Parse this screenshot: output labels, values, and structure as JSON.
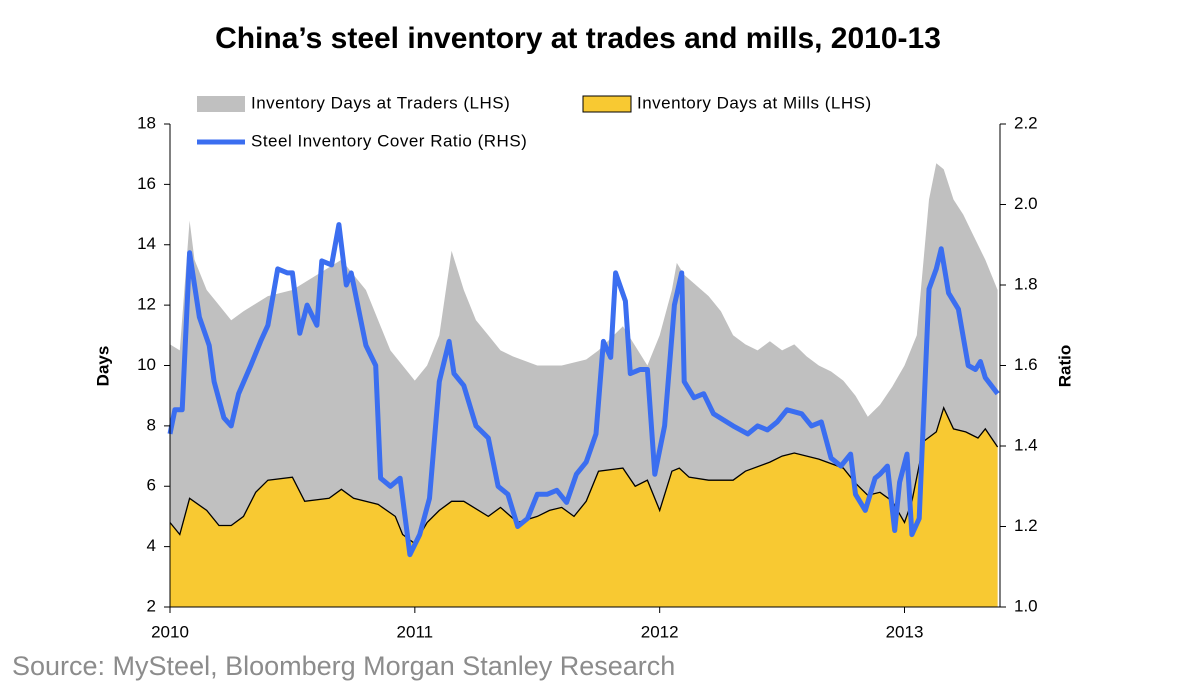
{
  "chart_data": {
    "type": "area",
    "title": "China’s steel inventory at trades and mills, 2010-13",
    "ylabel": "Days",
    "y2label": "Ratio",
    "source": "Source: MySteel, Bloomberg Morgan Stanley Research",
    "xlim": [
      2010,
      2013.39
    ],
    "xticks": [
      2010,
      2011,
      2012,
      2013
    ],
    "ylim": [
      2,
      18
    ],
    "yticks": [
      2,
      4,
      6,
      8,
      10,
      12,
      14,
      16,
      18
    ],
    "y2lim": [
      1,
      2.2
    ],
    "y2ticks": [
      {
        "value": 1,
        "label": "1.0"
      },
      1.2,
      1.4,
      1.6,
      1.8,
      {
        "value": 2,
        "label": "2.0"
      },
      2.2
    ],
    "series": [
      {
        "name": "Inventory Days at Traders (LHS)",
        "type": "area",
        "color": "#c0c0c0",
        "x": [
          2010,
          2010.04,
          2010.08,
          2010.1,
          2010.15,
          2010.2,
          2010.25,
          2010.3,
          2010.4,
          2010.5,
          2010.6,
          2010.7,
          2010.75,
          2010.8,
          2010.9,
          2011,
          2011.05,
          2011.1,
          2011.15,
          2011.2,
          2011.25,
          2011.3,
          2011.35,
          2011.4,
          2011.5,
          2011.6,
          2011.7,
          2011.75,
          2011.85,
          2011.95,
          2012,
          2012.05,
          2012.07,
          2012.1,
          2012.2,
          2012.25,
          2012.3,
          2012.35,
          2012.4,
          2012.45,
          2012.5,
          2012.55,
          2012.6,
          2012.65,
          2012.7,
          2012.75,
          2012.8,
          2012.85,
          2012.9,
          2012.95,
          2013,
          2013.05,
          2013.1,
          2013.13,
          2013.16,
          2013.2,
          2013.24,
          2013.27,
          2013.33,
          2013.38
        ],
        "values": [
          10.7,
          10.5,
          14.8,
          13.5,
          12.5,
          12,
          11.5,
          11.8,
          12.3,
          12.5,
          13,
          13.5,
          13,
          12.5,
          10.5,
          9.5,
          10,
          11,
          13.8,
          12.5,
          11.5,
          11,
          10.5,
          10.3,
          10,
          10,
          10.2,
          10.5,
          11.3,
          10,
          11,
          12.5,
          13.4,
          13,
          12.3,
          11.8,
          11,
          10.7,
          10.5,
          10.8,
          10.5,
          10.7,
          10.3,
          10,
          9.8,
          9.5,
          9,
          8.3,
          8.7,
          9.3,
          10,
          11,
          15.5,
          16.7,
          16.5,
          15.5,
          15,
          14.5,
          13.5,
          12.5
        ]
      },
      {
        "name": "Inventory Days at Mills (LHS)",
        "type": "area",
        "color": "#f8c932",
        "x": [
          2010,
          2010.04,
          2010.08,
          2010.15,
          2010.2,
          2010.25,
          2010.3,
          2010.35,
          2010.4,
          2010.5,
          2010.55,
          2010.65,
          2010.7,
          2010.75,
          2010.85,
          2010.92,
          2010.95,
          2011,
          2011.05,
          2011.1,
          2011.15,
          2011.2,
          2011.3,
          2011.35,
          2011.42,
          2011.5,
          2011.55,
          2011.6,
          2011.65,
          2011.7,
          2011.75,
          2011.85,
          2011.9,
          2011.95,
          2012,
          2012.05,
          2012.08,
          2012.12,
          2012.2,
          2012.3,
          2012.35,
          2012.45,
          2012.5,
          2012.55,
          2012.65,
          2012.75,
          2012.8,
          2012.85,
          2012.9,
          2012.95,
          2013,
          2013.03,
          2013.08,
          2013.13,
          2013.16,
          2013.2,
          2013.25,
          2013.3,
          2013.33,
          2013.38
        ],
        "values": [
          4.8,
          4.4,
          5.6,
          5.2,
          4.7,
          4.7,
          5,
          5.8,
          6.2,
          6.3,
          5.5,
          5.6,
          5.9,
          5.6,
          5.4,
          5,
          4.4,
          4.1,
          4.8,
          5.2,
          5.5,
          5.5,
          5,
          5.3,
          4.8,
          5,
          5.2,
          5.3,
          5,
          5.5,
          6.5,
          6.6,
          6,
          6.2,
          5.2,
          6.5,
          6.6,
          6.3,
          6.2,
          6.2,
          6.5,
          6.8,
          7,
          7.1,
          6.9,
          6.6,
          6.1,
          5.7,
          5.8,
          5.5,
          4.8,
          5.5,
          7.5,
          7.8,
          8.6,
          7.9,
          7.8,
          7.6,
          7.9,
          7.3
        ]
      },
      {
        "name": "Steel Inventory Cover Ratio (RHS)",
        "type": "line",
        "axis": "y2",
        "color": "#3b6ef0",
        "x": [
          2010,
          2010.02,
          2010.05,
          2010.08,
          2010.12,
          2010.16,
          2010.18,
          2010.22,
          2010.25,
          2010.28,
          2010.33,
          2010.37,
          2010.4,
          2010.44,
          2010.48,
          2010.5,
          2010.53,
          2010.56,
          2010.6,
          2010.62,
          2010.66,
          2010.69,
          2010.72,
          2010.74,
          2010.8,
          2010.84,
          2010.86,
          2010.9,
          2010.94,
          2010.98,
          2011.02,
          2011.06,
          2011.1,
          2011.14,
          2011.16,
          2011.2,
          2011.25,
          2011.3,
          2011.34,
          2011.38,
          2011.42,
          2011.46,
          2011.5,
          2011.54,
          2011.58,
          2011.62,
          2011.66,
          2011.7,
          2011.74,
          2011.77,
          2011.8,
          2011.82,
          2011.86,
          2011.88,
          2011.92,
          2011.95,
          2011.98,
          2012.02,
          2012.06,
          2012.09,
          2012.1,
          2012.14,
          2012.18,
          2012.22,
          2012.3,
          2012.36,
          2012.4,
          2012.44,
          2012.48,
          2012.52,
          2012.58,
          2012.62,
          2012.66,
          2012.7,
          2012.74,
          2012.78,
          2012.8,
          2012.84,
          2012.88,
          2012.9,
          2012.93,
          2012.96,
          2012.98,
          2013.01,
          2013.03,
          2013.06,
          2013.1,
          2013.13,
          2013.15,
          2013.18,
          2013.22,
          2013.26,
          2013.29,
          2013.31,
          2013.33,
          2013.38
        ],
        "values": [
          1.43,
          1.49,
          1.49,
          1.88,
          1.72,
          1.65,
          1.56,
          1.47,
          1.45,
          1.53,
          1.6,
          1.66,
          1.7,
          1.84,
          1.83,
          1.83,
          1.68,
          1.75,
          1.7,
          1.86,
          1.85,
          1.95,
          1.8,
          1.83,
          1.65,
          1.6,
          1.32,
          1.3,
          1.32,
          1.13,
          1.18,
          1.27,
          1.56,
          1.66,
          1.58,
          1.55,
          1.45,
          1.42,
          1.3,
          1.28,
          1.2,
          1.22,
          1.28,
          1.28,
          1.29,
          1.26,
          1.33,
          1.36,
          1.43,
          1.66,
          1.62,
          1.83,
          1.76,
          1.58,
          1.59,
          1.59,
          1.33,
          1.45,
          1.75,
          1.83,
          1.56,
          1.52,
          1.53,
          1.48,
          1.45,
          1.43,
          1.45,
          1.44,
          1.46,
          1.49,
          1.48,
          1.45,
          1.46,
          1.37,
          1.35,
          1.38,
          1.28,
          1.24,
          1.32,
          1.33,
          1.35,
          1.19,
          1.31,
          1.38,
          1.18,
          1.22,
          1.79,
          1.84,
          1.89,
          1.78,
          1.74,
          1.6,
          1.59,
          1.61,
          1.57,
          1.53
        ]
      }
    ]
  }
}
